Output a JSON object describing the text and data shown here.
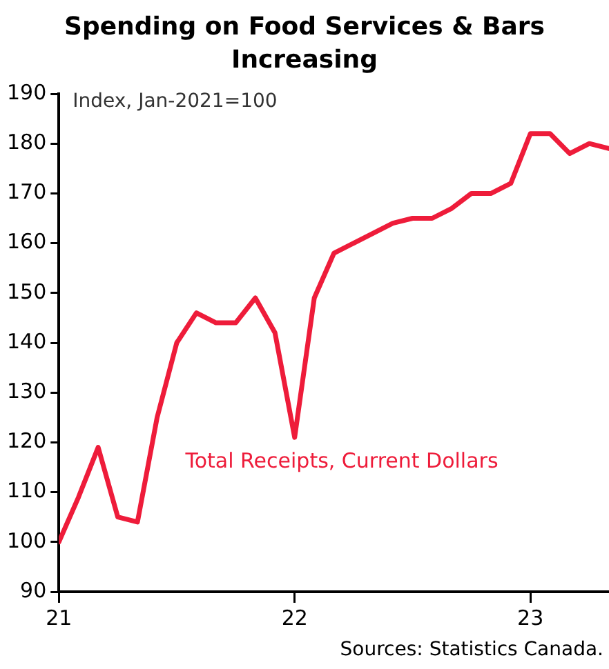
{
  "chart_data": {
    "type": "line",
    "title": "Spending on Food Services & Bars Increasing",
    "ylabel": "Index, Jan-2021=100",
    "x": [
      "2021-01",
      "2021-02",
      "2021-03",
      "2021-04",
      "2021-05",
      "2021-06",
      "2021-07",
      "2021-08",
      "2021-09",
      "2021-10",
      "2021-11",
      "2021-12",
      "2022-01",
      "2022-02",
      "2022-03",
      "2022-04",
      "2022-05",
      "2022-06",
      "2022-07",
      "2022-08",
      "2022-09",
      "2022-10",
      "2022-11",
      "2022-12",
      "2023-01",
      "2023-02",
      "2023-03",
      "2023-04",
      "2023-05"
    ],
    "series": [
      {
        "name": "Total Receipts, Current Dollars",
        "color": "#ee1c3a",
        "values": [
          100,
          109,
          119,
          105,
          104,
          125,
          140,
          146,
          144,
          144,
          149,
          142,
          121,
          149,
          158,
          160,
          162,
          164,
          165,
          165,
          167,
          170,
          170,
          172,
          182,
          182,
          178,
          180,
          179
        ]
      }
    ],
    "xlim": [
      "2021-01",
      "2023-05"
    ],
    "xticks": [
      {
        "value": "2021-01",
        "label": "21"
      },
      {
        "value": "2022-01",
        "label": "22"
      },
      {
        "value": "2023-01",
        "label": "23"
      }
    ],
    "ylim": [
      90,
      190
    ],
    "yticks": [
      90,
      100,
      110,
      120,
      130,
      140,
      150,
      160,
      170,
      180,
      190
    ],
    "grid": false,
    "legend": false,
    "marker": "none",
    "line_style": "solid",
    "annotations": [
      "Sources: Statistics Canada."
    ]
  }
}
